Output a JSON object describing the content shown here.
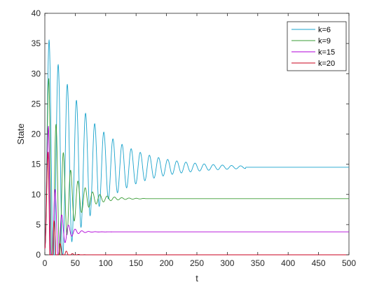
{
  "chart_data": {
    "type": "line",
    "title": "",
    "xlabel": "t",
    "ylabel": "State",
    "xlim": [
      0,
      500
    ],
    "ylim": [
      0,
      40
    ],
    "xticks": [
      0,
      50,
      100,
      150,
      200,
      250,
      300,
      350,
      400,
      450,
      500
    ],
    "yticks": [
      0,
      5,
      10,
      15,
      20,
      25,
      30,
      35,
      40
    ],
    "grid": false,
    "legend_position": "top-right",
    "series": [
      {
        "name": "k=6",
        "color": "#1aa3cc",
        "steady": 14.5,
        "peak": 35.6,
        "first_trough": 3.5,
        "period": 15,
        "decay_time": 70,
        "peak_time": 7,
        "settle_time": 330
      },
      {
        "name": "k=9",
        "color": "#3a9c35",
        "steady": 9.3,
        "peak": 29.2,
        "first_trough": 2.5,
        "period": 12,
        "decay_time": 25,
        "peak_time": 6.5,
        "settle_time": 165
      },
      {
        "name": "k=15",
        "color": "#b000d8",
        "steady": 3.8,
        "peak": 21.3,
        "first_trough": 0.3,
        "period": 11,
        "decay_time": 12,
        "peak_time": 6,
        "settle_time": 110
      },
      {
        "name": "k=20",
        "color": "#c8001c",
        "steady": 0.0,
        "peak": 17.0,
        "first_trough": 0.2,
        "period": 10,
        "decay_time": 9,
        "peak_time": 5.5,
        "settle_time": 80
      }
    ]
  }
}
